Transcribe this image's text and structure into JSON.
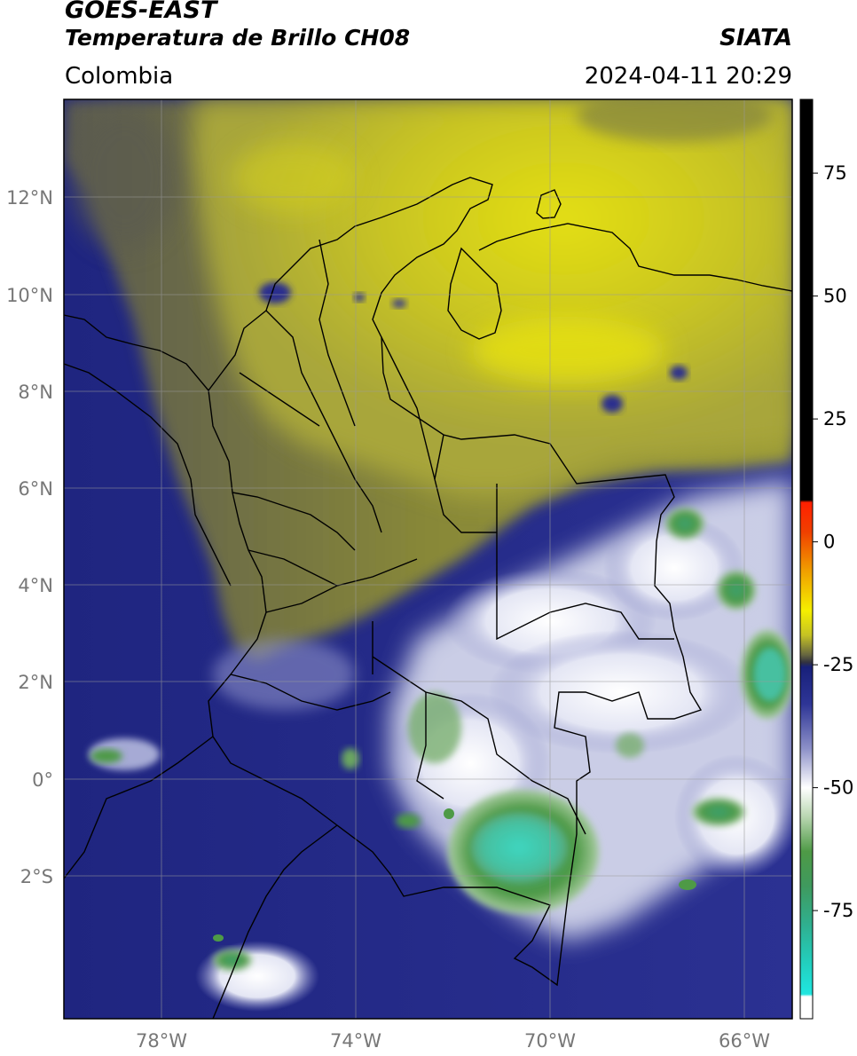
{
  "header": {
    "satellite": "GOES-EAST",
    "product": "Temperatura de Brillo CH08",
    "region": "Colombia",
    "organization": "SIATA",
    "timestamp": "2024-04-11 20:29"
  },
  "map": {
    "lon_ticks": [
      "78°W",
      "74°W",
      "70°W",
      "66°W"
    ],
    "lat_ticks": [
      "12°N",
      "10°N",
      "8°N",
      "6°N",
      "4°N",
      "2°N",
      "0°",
      "2°S"
    ],
    "colors": {
      "warm_yellow": "#c8c424",
      "mid_olive": "#8a8a3c",
      "cold_blue": "#2a2f8e",
      "deep_navy": "#1d2275",
      "cloud_white": "#f2f2f8",
      "deep_convection_green": "#4e9a46",
      "very_cold_teal": "#46c8a8",
      "borders": "#000000",
      "gridlines": "#9a9a9a"
    }
  },
  "colorbar": {
    "tick_labels": [
      "75",
      "50",
      "25",
      "0",
      "-25",
      "-50",
      "-75"
    ],
    "tick_values": [
      75,
      50,
      25,
      0,
      -25,
      -50,
      -75
    ],
    "range": [
      -97,
      90
    ],
    "stops": [
      {
        "value": 90,
        "color": "#000000"
      },
      {
        "value": 8.5,
        "color": "#000000"
      },
      {
        "value": 8,
        "color": "#ff2000"
      },
      {
        "value": 2,
        "color": "#f04000"
      },
      {
        "value": -6,
        "color": "#f0a000"
      },
      {
        "value": -14,
        "color": "#f5ef00"
      },
      {
        "value": -19,
        "color": "#c5c224"
      },
      {
        "value": -23,
        "color": "#666640"
      },
      {
        "value": -24.5,
        "color": "#333340"
      },
      {
        "value": -25.5,
        "color": "#18207a"
      },
      {
        "value": -33,
        "color": "#2e3596"
      },
      {
        "value": -42,
        "color": "#8c90c8"
      },
      {
        "value": -50,
        "color": "#ffffff"
      },
      {
        "value": -56,
        "color": "#b8d6b0"
      },
      {
        "value": -63,
        "color": "#4e9a46"
      },
      {
        "value": -70,
        "color": "#3f9a5e"
      },
      {
        "value": -78,
        "color": "#2fb090"
      },
      {
        "value": -86,
        "color": "#22d0c0"
      },
      {
        "value": -92,
        "color": "#20e6e0"
      },
      {
        "value": -92.5,
        "color": "#ffffff"
      },
      {
        "value": -97,
        "color": "#ffffff"
      }
    ]
  }
}
